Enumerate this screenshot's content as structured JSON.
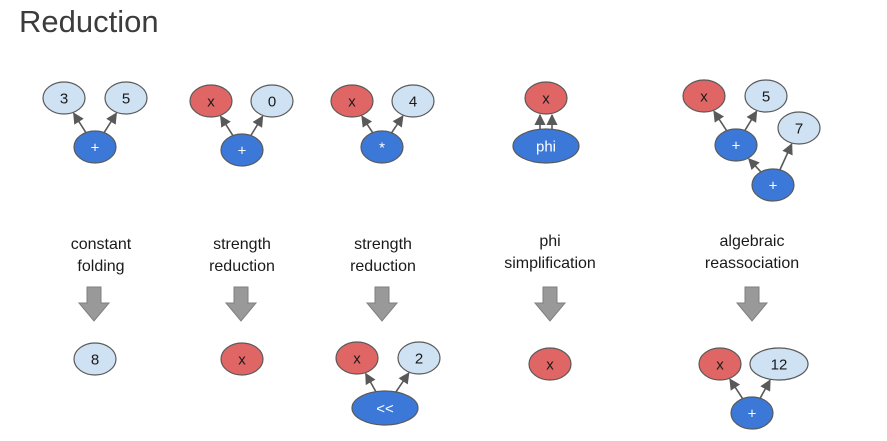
{
  "title": "Reduction",
  "colors": {
    "light_node": "#cfe2f3",
    "red_node": "#e06666",
    "blue_node": "#3c78d8",
    "node_stroke": "#595959",
    "arrow": "#595959",
    "transform_arrow": "#999999"
  },
  "examples": [
    {
      "caption": [
        "constant",
        "folding"
      ],
      "before": {
        "nodes": [
          "3",
          "5",
          "+"
        ]
      },
      "after": {
        "nodes": [
          "8"
        ]
      }
    },
    {
      "caption": [
        "strength",
        "reduction"
      ],
      "before": {
        "nodes": [
          "x",
          "0",
          "+"
        ]
      },
      "after": {
        "nodes": [
          "x"
        ]
      }
    },
    {
      "caption": [
        "strength",
        "reduction"
      ],
      "before": {
        "nodes": [
          "x",
          "4",
          "*"
        ]
      },
      "after": {
        "nodes": [
          "x",
          "2",
          "<<"
        ]
      }
    },
    {
      "caption": [
        "phi",
        "simplification"
      ],
      "before": {
        "nodes": [
          "x",
          "phi"
        ]
      },
      "after": {
        "nodes": [
          "x"
        ]
      }
    },
    {
      "caption": [
        "algebraic",
        "reassociation"
      ],
      "before": {
        "nodes": [
          "x",
          "5",
          "+",
          "7",
          "+"
        ]
      },
      "after": {
        "nodes": [
          "x",
          "12",
          "+"
        ]
      }
    }
  ]
}
